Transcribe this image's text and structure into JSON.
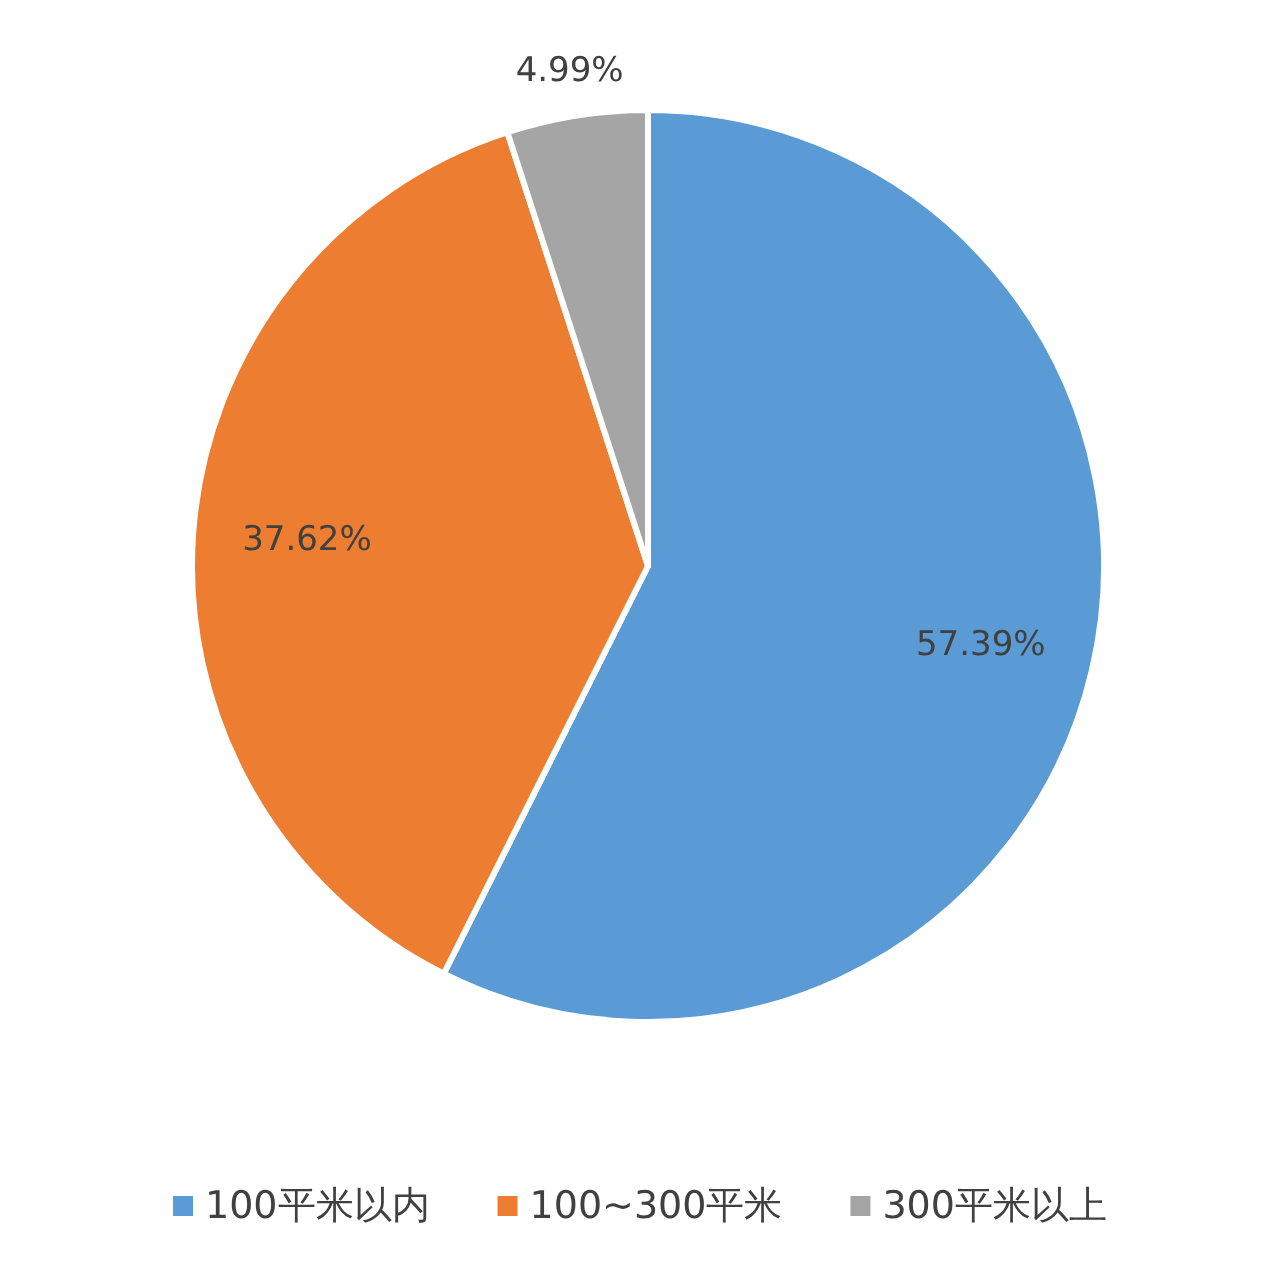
{
  "chart_data": {
    "type": "pie",
    "categories": [
      "100平米以内",
      "100~300平米",
      "300平米以上"
    ],
    "values": [
      57.39,
      37.62,
      4.99
    ],
    "colors": [
      "#5b9bd5",
      "#ed7d31",
      "#a5a5a5"
    ],
    "value_labels": [
      "57.39%",
      "37.62%",
      "4.99%"
    ],
    "legend": "bottom"
  }
}
